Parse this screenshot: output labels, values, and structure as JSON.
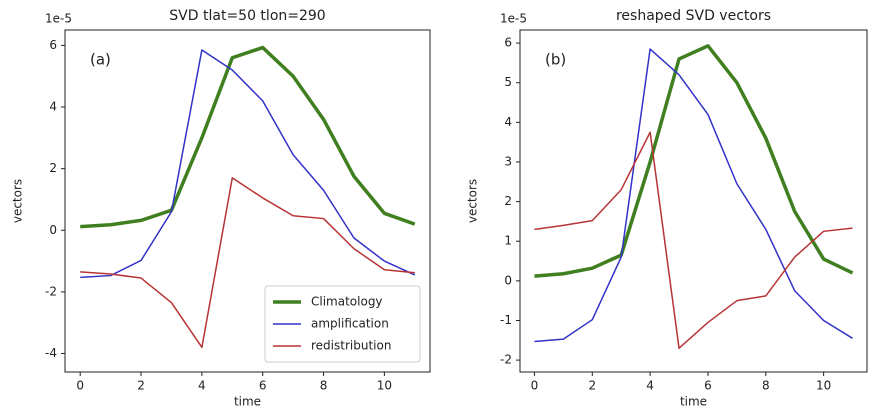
{
  "chart_data": [
    {
      "type": "line",
      "title": "SVD tlat=50 tlon=290",
      "annotation": "(a)",
      "offset_text": "1e-5",
      "x_label": "time",
      "y_label": "vectors",
      "x": [
        0,
        1,
        2,
        3,
        4,
        5,
        6,
        7,
        8,
        9,
        10,
        11
      ],
      "xlim": [
        -0.5,
        11.5
      ],
      "xticks": [
        0,
        2,
        4,
        6,
        8,
        10
      ],
      "ylim": [
        -4.6,
        6.5
      ],
      "yticks": [
        -4,
        -2,
        0,
        2,
        4,
        6
      ],
      "legend": "lower right",
      "series": [
        {
          "name": "Climatology",
          "color": "#3f7f1f",
          "width": 3.5,
          "values": [
            0.12,
            0.18,
            0.32,
            0.65,
            3.0,
            5.6,
            5.93,
            5.0,
            3.6,
            1.75,
            0.55,
            0.2
          ]
        },
        {
          "name": "amplification",
          "color": "#3232c8",
          "width": 1.5,
          "values": [
            -1.53,
            -1.47,
            -0.98,
            0.6,
            5.85,
            5.2,
            4.2,
            2.45,
            1.3,
            -0.25,
            -1.0,
            -1.45
          ]
        },
        {
          "name": "redistribution",
          "color": "#b83434",
          "width": 1.5,
          "values": [
            -1.35,
            -1.42,
            -1.55,
            -2.35,
            -3.8,
            1.7,
            1.05,
            0.47,
            0.38,
            -0.6,
            -1.28,
            -1.38
          ]
        }
      ]
    },
    {
      "type": "line",
      "title": "reshaped SVD vectors",
      "annotation": "(b)",
      "offset_text": "1e-5",
      "x_label": "time",
      "y_label": "vectors",
      "x": [
        0,
        1,
        2,
        3,
        4,
        5,
        6,
        7,
        8,
        9,
        10,
        11
      ],
      "xlim": [
        -0.5,
        11.5
      ],
      "xticks": [
        0,
        2,
        4,
        6,
        8,
        10
      ],
      "ylim": [
        -2.3,
        6.33
      ],
      "yticks": [
        -2,
        -1,
        0,
        1,
        2,
        3,
        4,
        5,
        6
      ],
      "series": [
        {
          "color": "#3f7f1f",
          "width": 3.5,
          "values": [
            0.12,
            0.18,
            0.32,
            0.65,
            3.0,
            5.6,
            5.93,
            5.0,
            3.6,
            1.75,
            0.55,
            0.2
          ]
        },
        {
          "color": "#3232c8",
          "width": 1.5,
          "values": [
            -1.53,
            -1.47,
            -0.98,
            0.6,
            5.85,
            5.2,
            4.2,
            2.45,
            1.3,
            -0.25,
            -1.0,
            -1.45
          ]
        },
        {
          "color": "#b83434",
          "width": 1.5,
          "values": [
            1.3,
            1.4,
            1.52,
            2.3,
            3.75,
            -1.7,
            -1.05,
            -0.5,
            -0.38,
            0.6,
            1.25,
            1.33
          ]
        }
      ]
    }
  ]
}
